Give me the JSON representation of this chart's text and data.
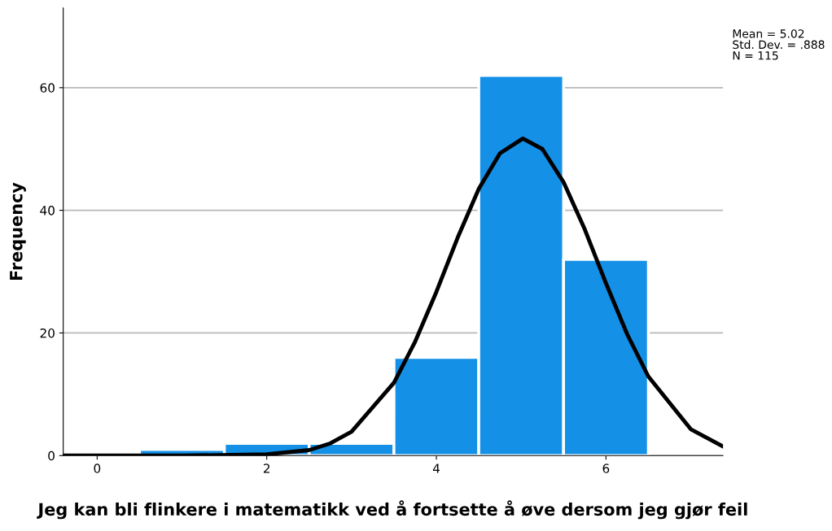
{
  "chart_data": {
    "type": "histogram",
    "xlabel": "Jeg kan bli flinkere i matematikk ved å fortsette å øve dersom jeg gjør feil",
    "ylabel": "Frequency",
    "bins": [
      0.5,
      1.5,
      2.5,
      3.5,
      4.5,
      5.5,
      6.5
    ],
    "values": [
      1,
      2,
      2,
      16,
      62,
      32
    ],
    "color": "#1490e6",
    "series": [
      {
        "type": "line",
        "color": "#000000",
        "x": [
          -0.4,
          0,
          1,
          2,
          2.5,
          2.75,
          3,
          3.5,
          3.75,
          4,
          4.25,
          4.5,
          4.75,
          5.02,
          5.25,
          5.5,
          5.75,
          6,
          6.25,
          6.5,
          7,
          7.38
        ],
        "values": [
          0,
          0,
          0,
          0.2,
          0.9,
          2.0,
          3.9,
          11.9,
          18.6,
          26.7,
          35.5,
          43.5,
          49.3,
          51.7,
          50.0,
          44.6,
          36.9,
          28.1,
          19.8,
          12.9,
          4.3,
          1.5
        ]
      }
    ],
    "xlim": [
      -0.4,
      7.38
    ],
    "xticks": [
      0,
      2,
      4,
      6
    ],
    "ylim": [
      0,
      73
    ],
    "yticks": [
      0,
      20,
      40,
      60
    ],
    "grid": "y",
    "legend": false,
    "annotations": [
      "Mean = 5.02",
      "Std. Dev. = .888",
      "N = 115"
    ]
  }
}
